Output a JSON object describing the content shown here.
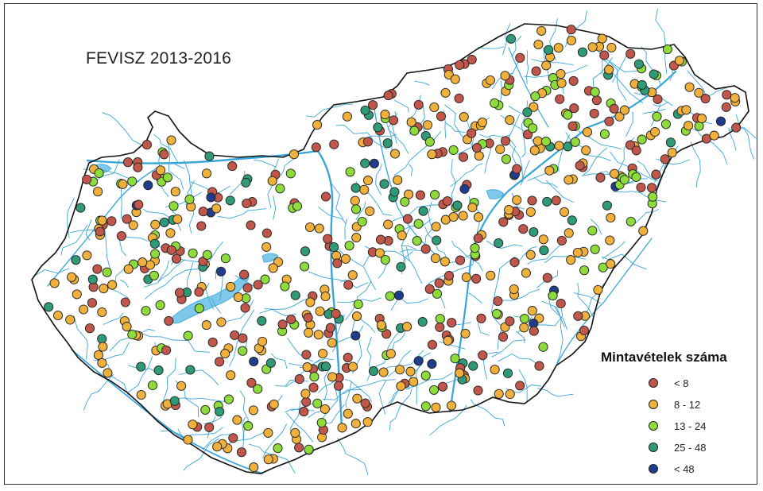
{
  "title": "FEVISZ 2013-2016",
  "colors": {
    "river": "#3aa6d8",
    "lake": "#7ec8ea",
    "outline": "#111111",
    "dot_stroke": "#222222"
  },
  "legend": {
    "title": "Mintavételek száma",
    "items": [
      {
        "label": "< 8",
        "color": "#c0574a"
      },
      {
        "label": "8 - 12",
        "color": "#f0b03c"
      },
      {
        "label": "13 - 24",
        "color": "#8edc3c"
      },
      {
        "label": "25 - 48",
        "color": "#2e9a78"
      },
      {
        "label": "< 48",
        "color": "#1f3d8a"
      }
    ]
  }
}
